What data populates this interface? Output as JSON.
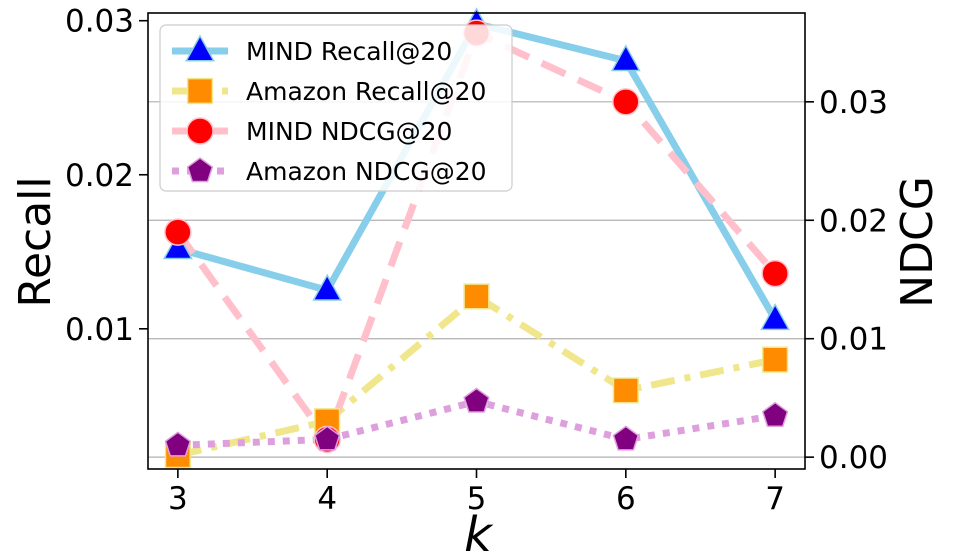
{
  "chart_data": {
    "type": "line",
    "x": [
      3,
      4,
      5,
      6,
      7
    ],
    "xlabel": "k",
    "ylabel_left": "Recall",
    "ylabel_right": "NDCG",
    "ylim_left": [
      0.0009,
      0.0305
    ],
    "ylim_right": [
      -0.001,
      0.0375
    ],
    "left_ticks": [
      {
        "v": 0.01,
        "label": "0.01"
      },
      {
        "v": 0.02,
        "label": "0.02"
      },
      {
        "v": 0.03,
        "label": "0.03"
      }
    ],
    "right_ticks": [
      {
        "v": 0.0,
        "label": "0.00"
      },
      {
        "v": 0.01,
        "label": "0.01"
      },
      {
        "v": 0.02,
        "label": "0.02"
      },
      {
        "v": 0.03,
        "label": "0.03"
      }
    ],
    "x_ticks": [
      {
        "v": 3,
        "label": "3"
      },
      {
        "v": 4,
        "label": "4"
      },
      {
        "v": 5,
        "label": "5"
      },
      {
        "v": 6,
        "label": "6"
      },
      {
        "v": 7,
        "label": "7"
      }
    ],
    "grid": "horizontal, right axis",
    "legend_position": "upper-left",
    "series": [
      {
        "name": "MIND Recall@20",
        "axis": "left",
        "values": [
          0.0152,
          0.0125,
          0.0298,
          0.0274,
          0.0106
        ],
        "line_color": "#87ceeb",
        "marker": "triangle",
        "marker_color": "#0000ff",
        "marker_edge": "#87ceeb",
        "dash": "solid"
      },
      {
        "name": "Amazon Recall@20",
        "axis": "left",
        "values": [
          0.0018,
          0.004,
          0.0121,
          0.006,
          0.008
        ],
        "line_color": "#f0e68c",
        "marker": "square",
        "marker_color": "#ff8c00",
        "marker_edge": "#f0e68c",
        "dash": "dashdot"
      },
      {
        "name": "MIND NDCG@20",
        "axis": "right",
        "values": [
          0.019,
          0.0015,
          0.0358,
          0.03,
          0.0155
        ],
        "line_color": "#ffc0cb",
        "marker": "circle",
        "marker_color": "#ff0000",
        "marker_edge": "#ffc0cb",
        "dash": "dashed"
      },
      {
        "name": "Amazon NDCG@20",
        "axis": "right",
        "values": [
          0.001,
          0.0015,
          0.0047,
          0.0015,
          0.0035
        ],
        "line_color": "#dda0dd",
        "marker": "pentagon",
        "marker_color": "#800080",
        "marker_edge": "#dda0dd",
        "dash": "dotted"
      }
    ]
  }
}
